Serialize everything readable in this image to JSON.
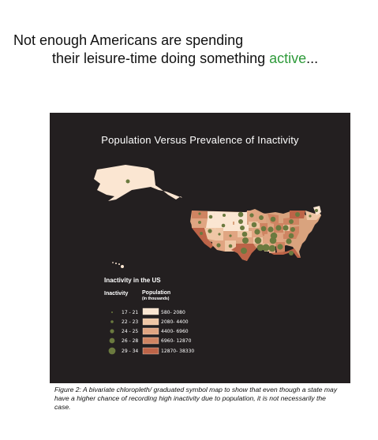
{
  "headline": {
    "line1": "Not enough Americans are spending",
    "line2_prefix": "their leisure-time doing something ",
    "line2_accent": "active",
    "line2_suffix": "...",
    "accent_color": "#2e9a3a"
  },
  "map": {
    "title": "Population Versus Prevalence of Inactivity",
    "background_color": "#231f20",
    "legend": {
      "title": "Inactivity in the US",
      "inactivity_header": "Inactivity",
      "population_header": "Population",
      "population_unit": "(in thousands)",
      "inactivity_classes": [
        "17 - 21",
        "22 - 23",
        "24 - 25",
        "26 - 28",
        "29 - 34"
      ],
      "population_classes": [
        {
          "label": "580- 2080",
          "color": "#fbe6d2"
        },
        {
          "label": "2080- 4400",
          "color": "#efc7a6"
        },
        {
          "label": "4400- 6960",
          "color": "#e0a582"
        },
        {
          "label": "6960- 12870",
          "color": "#cf8462"
        },
        {
          "label": "12870- 38330",
          "color": "#bd6448"
        }
      ],
      "symbol_color": "#6b7a3f"
    }
  },
  "caption": "Figure 2: A bivariate chloropleth/ graduated symbol map to show that even though a state may have a higher chance of recording high inactivity due to population, it is not necessarily the case."
}
